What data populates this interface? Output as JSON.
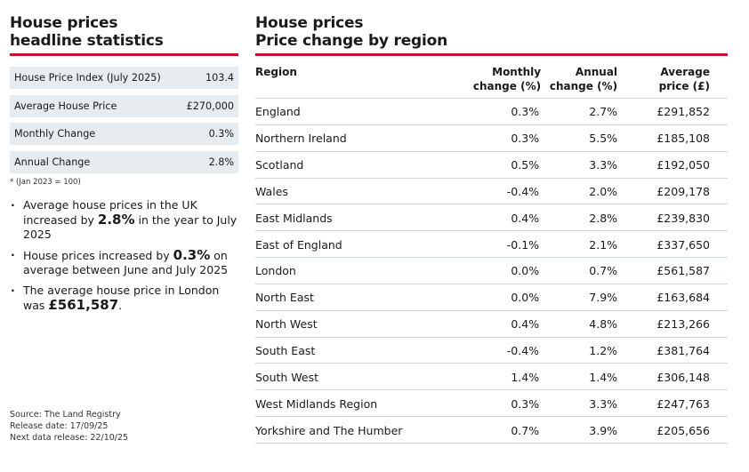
{
  "headline": {
    "title_line1": "House prices",
    "title_line2": "headline statistics",
    "stats": [
      {
        "label": "House Price Index (July 2025)",
        "value": "103.4"
      },
      {
        "label": "Average House Price",
        "value": "£270,000"
      },
      {
        "label": "Monthly Change",
        "value": "0.3%"
      },
      {
        "label": "Annual Change",
        "value": "2.8%"
      }
    ],
    "footnote": "* (Jan 2023 = 100)",
    "bullets": [
      {
        "pre": "Average house prices in the UK increased by ",
        "bold": "2.8%",
        "post": " in the year to July 2025"
      },
      {
        "pre": "House prices increased by ",
        "bold": "0.3%",
        "post": " on average between June and July 2025"
      },
      {
        "pre": "The average house price in London was ",
        "bold": "£561,587",
        "post": "."
      }
    ],
    "source": "Source: The Land Registry",
    "release_date": "Release date: 17/09/25",
    "next_release": "Next data release: 22/10/25"
  },
  "regional": {
    "title_line1": "House prices",
    "title_line2": "Price change by region",
    "headers": {
      "region": "Region",
      "monthly_1": "Monthly",
      "monthly_2": "change (%)",
      "annual_1": "Annual",
      "annual_2": "change (%)",
      "price_1": "Average",
      "price_2": "price (£)"
    },
    "rows": [
      {
        "region": "England",
        "monthly": "0.3%",
        "annual": "2.7%",
        "price": "£291,852"
      },
      {
        "region": "Northern Ireland",
        "monthly": "0.3%",
        "annual": "5.5%",
        "price": "£185,108"
      },
      {
        "region": "Scotland",
        "monthly": "0.5%",
        "annual": "3.3%",
        "price": "£192,050"
      },
      {
        "region": "Wales",
        "monthly": "-0.4%",
        "annual": "2.0%",
        "price": "£209,178"
      },
      {
        "region": "East Midlands",
        "monthly": "0.4%",
        "annual": "2.8%",
        "price": "£239,830"
      },
      {
        "region": "East of England",
        "monthly": "-0.1%",
        "annual": "2.1%",
        "price": "£337,650"
      },
      {
        "region": "London",
        "monthly": "0.0%",
        "annual": "0.7%",
        "price": "£561,587"
      },
      {
        "region": "North East",
        "monthly": "0.0%",
        "annual": "7.9%",
        "price": "£163,684"
      },
      {
        "region": "North West",
        "monthly": "0.4%",
        "annual": "4.8%",
        "price": "£213,266"
      },
      {
        "region": "South East",
        "monthly": "-0.4%",
        "annual": "1.2%",
        "price": "£381,764"
      },
      {
        "region": "South West",
        "monthly": "1.4%",
        "annual": "1.4%",
        "price": "£306,148"
      },
      {
        "region": "West Midlands Region",
        "monthly": "0.3%",
        "annual": "3.3%",
        "price": "£247,763"
      },
      {
        "region": "Yorkshire and The Humber",
        "monthly": "0.7%",
        "annual": "3.9%",
        "price": "£205,656"
      }
    ]
  },
  "colors": {
    "accent_rule": "#c8102e",
    "stat_bg": "#e6ecf0",
    "row_border": "#cfd6db"
  }
}
